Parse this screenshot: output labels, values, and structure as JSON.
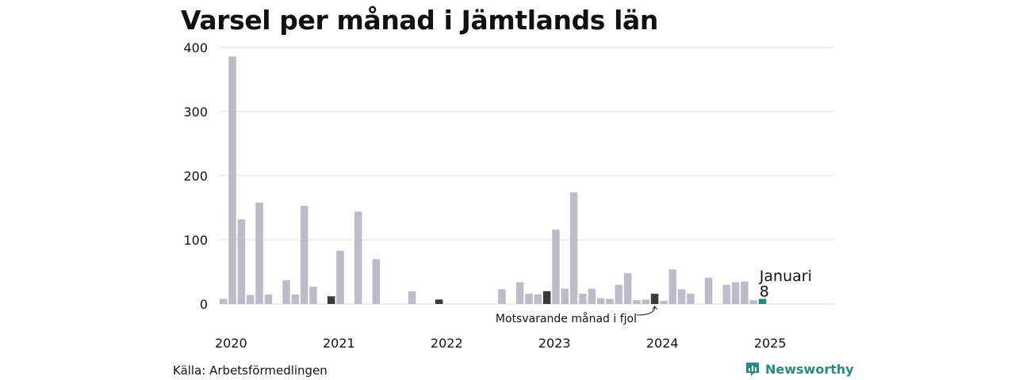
{
  "title": "Varsel per månad i Jämtlands län",
  "source": "Källa: Arbetsförmedlingen",
  "brand": {
    "name": "Newsworthy",
    "icon": "newsworthy-logo-icon",
    "color": "#2a8a82"
  },
  "annotations": {
    "highlight_month": "Januari",
    "highlight_value": "8",
    "previous_year_note": "Motsvarande månad i fjol"
  },
  "colors": {
    "default_bar": "#bdbbc9",
    "same_month_bar": "#3a3a3a",
    "highlight_bar": "#1c8f84",
    "grid": "#dcdcdc"
  },
  "chart_data": {
    "type": "bar",
    "title": "Varsel per månad i Jämtlands län",
    "xlabel": "",
    "ylabel": "",
    "ylim": [
      0,
      400
    ],
    "yticks": [
      0,
      100,
      200,
      300,
      400
    ],
    "grid": true,
    "x_tick_labels": [
      "2020",
      "2021",
      "2022",
      "2023",
      "2024",
      "2025"
    ],
    "start": "2020-01",
    "months": 69,
    "values": [
      8,
      386,
      132,
      14,
      158,
      15,
      0,
      37,
      15,
      153,
      27,
      0,
      12,
      83,
      0,
      144,
      0,
      70,
      0,
      0,
      0,
      20,
      0,
      0,
      7,
      0,
      0,
      0,
      0,
      0,
      0,
      23,
      0,
      34,
      16,
      15,
      20,
      116,
      24,
      174,
      16,
      24,
      9,
      8,
      30,
      48,
      6,
      7,
      16,
      5,
      54,
      23,
      16,
      0,
      41,
      0,
      30,
      34,
      35,
      6,
      8,
      0,
      0,
      0,
      0,
      0,
      0,
      0,
      0
    ],
    "same_month_previous_years": [
      "2021-01",
      "2022-01",
      "2023-01",
      "2024-01"
    ],
    "highlight": {
      "month": "2025-01",
      "label": "Januari",
      "value": 8
    }
  }
}
